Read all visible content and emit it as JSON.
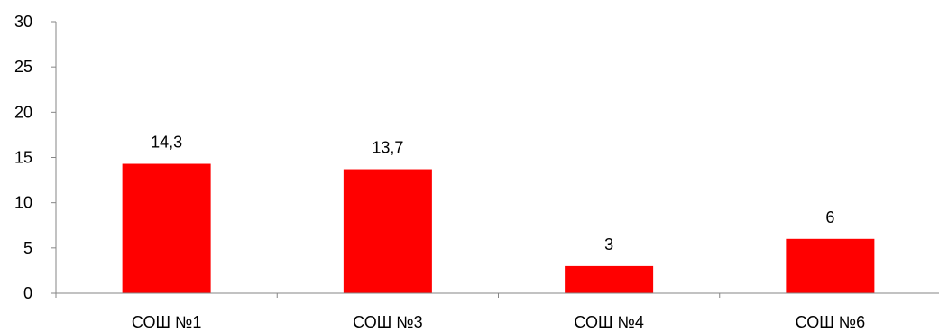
{
  "chart_data": {
    "type": "bar",
    "title": "",
    "xlabel": "",
    "ylabel": "",
    "categories": [
      "СОШ №1",
      "СОШ №3",
      "СОШ №4",
      "СОШ №6"
    ],
    "values": [
      14.3,
      13.7,
      3,
      6
    ],
    "value_labels": [
      "14,3",
      "13,7",
      "3",
      "6"
    ],
    "ylim": [
      0,
      30
    ],
    "yticks": [
      0,
      5,
      10,
      15,
      20,
      25,
      30
    ],
    "grid": false,
    "legend": "none",
    "bar_color": "#ff0000",
    "axis_color": "#868686"
  }
}
